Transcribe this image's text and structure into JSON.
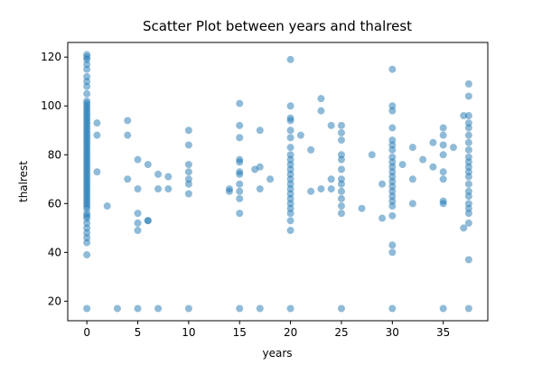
{
  "chart_data": {
    "type": "scatter",
    "title": "Scatter Plot between years and thalrest",
    "x_label": "years",
    "y_label": "thalrest",
    "color": "#1f77b4",
    "xlim": [
      -1.875,
      39.375
    ],
    "xticks": [
      0,
      5,
      10,
      15,
      20,
      25,
      30,
      35
    ],
    "ylim": [
      12,
      126
    ],
    "yticks": [
      20,
      40,
      60,
      80,
      100,
      120
    ],
    "series": [
      {
        "name": "thalrest",
        "color": "#1f77b4",
        "x": [
          0,
          0,
          0,
          0,
          0,
          0,
          0,
          0,
          0,
          0,
          0,
          0,
          0,
          0,
          0,
          0,
          0,
          0,
          0,
          0,
          0,
          0,
          0,
          0,
          0,
          0,
          0,
          0,
          0,
          0,
          0,
          0,
          0,
          0,
          0,
          0,
          0,
          0,
          0,
          0,
          0,
          0,
          0,
          0,
          0,
          0,
          0,
          0,
          0,
          0,
          0,
          0,
          0,
          0,
          0,
          0,
          0,
          0,
          0,
          0,
          0,
          0,
          0,
          0,
          1,
          1,
          1,
          2,
          3,
          4,
          4,
          4,
          5,
          5,
          5,
          5,
          5,
          5,
          6,
          6,
          6,
          7,
          7,
          7,
          8,
          8,
          10,
          10,
          10,
          10,
          10,
          10,
          10,
          10,
          14,
          14,
          15,
          15,
          15,
          15,
          15,
          15,
          15,
          15,
          15,
          15,
          15,
          15,
          16.5,
          17,
          17,
          17,
          17,
          18,
          20,
          20,
          20,
          20,
          20,
          20,
          20,
          20,
          20,
          20,
          20,
          20,
          20,
          20,
          20,
          20,
          20,
          20,
          20,
          20,
          20,
          20,
          20,
          21,
          22,
          22,
          23,
          23,
          23,
          24,
          24,
          24,
          25,
          25,
          25,
          25,
          25,
          25,
          25,
          25,
          25,
          25,
          25,
          25,
          25,
          27,
          28,
          29,
          29,
          30,
          30,
          30,
          30,
          30,
          30,
          30,
          30,
          30,
          30,
          30,
          30,
          30,
          30,
          30,
          30,
          30,
          30,
          30,
          30,
          30,
          30,
          31,
          32,
          32,
          32,
          33,
          34,
          34,
          35,
          35,
          35,
          35,
          35,
          35,
          35,
          35,
          35,
          36,
          37,
          37,
          37.5,
          37.5,
          37.5,
          37.5,
          37.5,
          37.5,
          37.5,
          37.5,
          37.5,
          37.5,
          37.5,
          37.5,
          37.5,
          37.5,
          37.5,
          37.5,
          37.5,
          37.5,
          37.5,
          37.5,
          37.5,
          37.5
        ],
        "values": [
          17,
          39,
          44,
          46,
          48,
          50,
          52,
          54,
          55,
          56,
          58,
          59,
          60,
          61,
          62,
          63,
          64,
          65,
          66,
          67,
          68,
          69,
          70,
          71,
          72,
          73,
          74,
          75,
          76,
          77,
          78,
          79,
          80,
          81,
          82,
          83,
          84,
          85,
          86,
          87,
          88,
          89,
          90,
          91,
          92,
          93,
          94,
          95,
          96,
          97,
          98,
          99,
          100,
          101,
          102,
          105,
          108,
          110,
          112,
          115,
          117,
          119,
          120,
          121,
          93,
          88,
          73,
          59,
          17,
          94,
          88,
          70,
          78,
          66,
          56,
          52,
          49,
          17,
          76,
          53,
          53,
          72,
          66,
          17,
          71,
          66,
          90,
          84,
          76,
          73,
          70,
          68,
          64,
          17,
          66,
          65,
          101,
          92,
          87,
          78,
          77,
          73,
          72,
          68,
          65,
          62,
          56,
          17,
          74,
          90,
          75,
          66,
          17,
          70,
          119,
          100,
          95,
          94,
          90,
          87,
          83,
          80,
          78,
          76,
          74,
          72,
          70,
          68,
          66,
          64,
          62,
          60,
          58,
          56,
          53,
          49,
          17,
          88,
          82,
          65,
          103,
          98,
          66,
          92,
          70,
          66,
          92,
          89,
          86,
          80,
          78,
          74,
          70,
          68,
          65,
          62,
          59,
          56,
          17,
          58,
          80,
          68,
          54,
          115,
          100,
          98,
          91,
          86,
          84,
          82,
          79,
          77,
          75,
          73,
          71,
          69,
          67,
          65,
          63,
          61,
          59,
          55,
          43,
          40,
          17,
          76,
          83,
          70,
          60,
          78,
          85,
          75,
          91,
          88,
          84,
          80,
          73,
          70,
          61,
          60,
          17,
          83,
          96,
          50,
          109,
          104,
          96,
          93,
          91,
          88,
          85,
          82,
          79,
          77,
          75,
          73,
          71,
          68,
          65,
          63,
          60,
          58,
          56,
          52,
          37,
          17
        ]
      }
    ]
  }
}
